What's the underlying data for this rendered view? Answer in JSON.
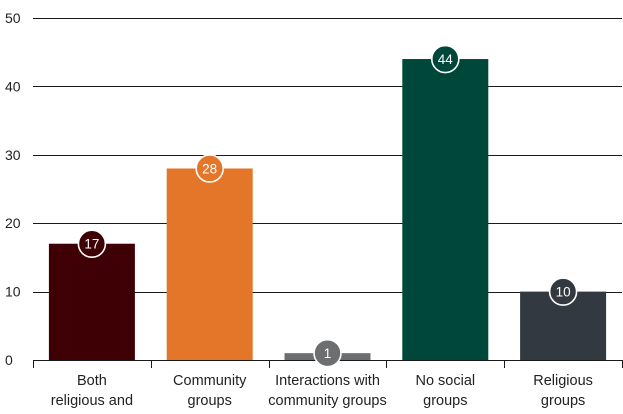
{
  "chart_data": {
    "type": "bar",
    "categories": [
      [
        "Both",
        "religious and"
      ],
      [
        "Community",
        "groups"
      ],
      [
        "Interactions with",
        "community groups"
      ],
      [
        "No social",
        "groups"
      ],
      [
        "Religious",
        "groups"
      ]
    ],
    "values": [
      17,
      28,
      1,
      44,
      10
    ],
    "value_labels": [
      "17",
      "28",
      "1",
      "44",
      "10"
    ],
    "colors": [
      "#3f0005",
      "#e4762a",
      "#6d6e70",
      "#00473b",
      "#333940"
    ],
    "ylim": [
      0,
      50
    ],
    "yticks": [
      0,
      10,
      20,
      30,
      40,
      50
    ],
    "ytick_labels": [
      "0",
      "10",
      "20",
      "30",
      "40",
      "50"
    ],
    "grid": true,
    "title": "",
    "xlabel": "",
    "ylabel": ""
  }
}
